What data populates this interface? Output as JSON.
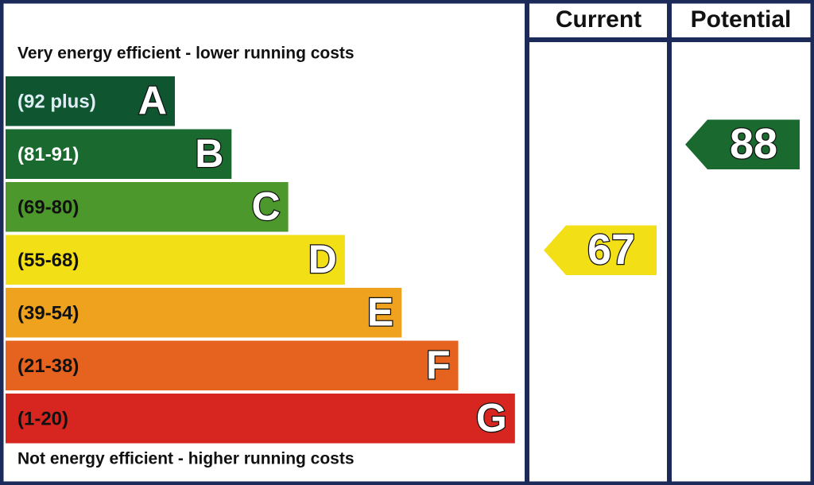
{
  "chart_data": {
    "type": "epc",
    "top_label": "Very energy efficient - lower running costs",
    "bottom_label": "Not energy efficient - higher running costs",
    "bands": [
      {
        "range": "(92 plus)",
        "letter": "A",
        "color": "#0e5530",
        "text_color": "#dfeef5"
      },
      {
        "range": "(81-91)",
        "letter": "B",
        "color": "#1a6a30",
        "text_color": "#ffffff"
      },
      {
        "range": "(69-80)",
        "letter": "C",
        "color": "#4c982c",
        "text_color": "#111111"
      },
      {
        "range": "(55-68)",
        "letter": "D",
        "color": "#f2df16",
        "text_color": "#111111"
      },
      {
        "range": "(39-54)",
        "letter": "E",
        "color": "#efa21e",
        "text_color": "#111111"
      },
      {
        "range": "(21-38)",
        "letter": "F",
        "color": "#e6631f",
        "text_color": "#111111"
      },
      {
        "range": "(1-20)",
        "letter": "G",
        "color": "#d6261f",
        "text_color": "#111111"
      }
    ],
    "columns": [
      {
        "title": "Current",
        "value": 67
      },
      {
        "title": "Potential",
        "value": 88
      }
    ]
  }
}
